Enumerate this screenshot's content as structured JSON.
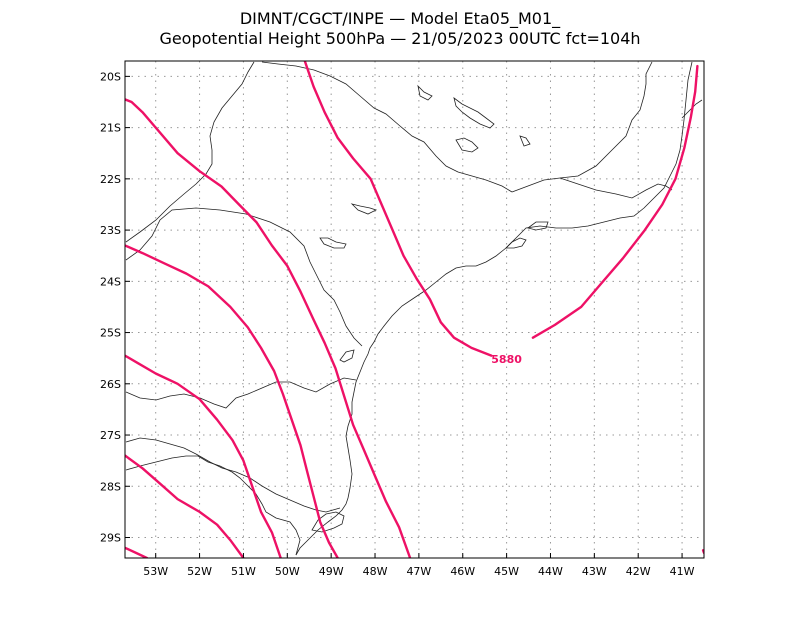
{
  "title": {
    "line1": "DIMNT/CGCT/INPE  —   Model Eta05_M01_",
    "line2": "Geopotential Height 500hPa  —   21/05/2023 00UTC fct=104h"
  },
  "axes": {
    "lat_labels": [
      "20S",
      "21S",
      "22S",
      "23S",
      "24S",
      "25S",
      "26S",
      "27S",
      "28S",
      "29S"
    ],
    "lon_labels": [
      "53W",
      "52W",
      "51W",
      "50W",
      "49W",
      "48W",
      "47W",
      "46W",
      "45W",
      "44W",
      "43W",
      "42W",
      "41W"
    ]
  },
  "contour_label": "5880",
  "colors": {
    "contour": "#ee1166",
    "coast": "#222222",
    "grid": "#999999"
  },
  "chart_data": {
    "type": "contour-map",
    "variable": "Geopotential Height 500hPa",
    "region_lon": [
      -53.7,
      -40.5
    ],
    "region_lat": [
      -29.4,
      -19.7
    ],
    "labeled_contour": 5880,
    "contours": [
      {
        "name": "contour-a",
        "points": [
          [
            -53.7,
            -20.45
          ],
          [
            -53.55,
            -20.5
          ],
          [
            -53.3,
            -20.7
          ],
          [
            -53.0,
            -21.0
          ],
          [
            -52.5,
            -21.5
          ],
          [
            -52.0,
            -21.85
          ],
          [
            -51.5,
            -22.15
          ],
          [
            -51.1,
            -22.5
          ],
          [
            -50.7,
            -22.85
          ],
          [
            -50.35,
            -23.3
          ],
          [
            -50.0,
            -23.7
          ],
          [
            -49.7,
            -24.2
          ],
          [
            -49.4,
            -24.75
          ],
          [
            -49.15,
            -25.2
          ],
          [
            -48.9,
            -25.7
          ],
          [
            -48.7,
            -26.25
          ],
          [
            -48.5,
            -26.8
          ],
          [
            -48.25,
            -27.3
          ],
          [
            -48.0,
            -27.8
          ],
          [
            -47.75,
            -28.3
          ],
          [
            -47.45,
            -28.8
          ],
          [
            -47.2,
            -29.4
          ]
        ]
      },
      {
        "name": "contour-b",
        "points": [
          [
            -53.7,
            -23.3
          ],
          [
            -53.3,
            -23.45
          ],
          [
            -52.8,
            -23.65
          ],
          [
            -52.3,
            -23.85
          ],
          [
            -51.8,
            -24.1
          ],
          [
            -51.3,
            -24.5
          ],
          [
            -50.9,
            -24.9
          ],
          [
            -50.6,
            -25.3
          ],
          [
            -50.3,
            -25.75
          ],
          [
            -50.1,
            -26.2
          ],
          [
            -49.9,
            -26.7
          ],
          [
            -49.7,
            -27.2
          ],
          [
            -49.55,
            -27.7
          ],
          [
            -49.4,
            -28.2
          ],
          [
            -49.25,
            -28.7
          ],
          [
            -49.05,
            -29.1
          ],
          [
            -48.85,
            -29.4
          ]
        ]
      },
      {
        "name": "contour-c",
        "points": [
          [
            -53.7,
            -25.45
          ],
          [
            -53.4,
            -25.6
          ],
          [
            -53.0,
            -25.8
          ],
          [
            -52.5,
            -26.0
          ],
          [
            -52.0,
            -26.3
          ],
          [
            -51.6,
            -26.7
          ],
          [
            -51.25,
            -27.1
          ],
          [
            -51.0,
            -27.5
          ],
          [
            -50.8,
            -28.0
          ],
          [
            -50.6,
            -28.5
          ],
          [
            -50.35,
            -28.9
          ],
          [
            -50.15,
            -29.4
          ]
        ]
      },
      {
        "name": "contour-d",
        "points": [
          [
            -53.7,
            -27.4
          ],
          [
            -53.3,
            -27.65
          ],
          [
            -52.9,
            -27.95
          ],
          [
            -52.5,
            -28.25
          ],
          [
            -52.0,
            -28.5
          ],
          [
            -51.6,
            -28.75
          ],
          [
            -51.3,
            -29.05
          ],
          [
            -51.0,
            -29.4
          ]
        ]
      },
      {
        "name": "contour-e",
        "points": [
          [
            -53.7,
            -29.2
          ],
          [
            -53.45,
            -29.3
          ],
          [
            -53.2,
            -29.4
          ]
        ]
      },
      {
        "name": "contour-5880",
        "points": [
          [
            -49.6,
            -19.7
          ],
          [
            -49.4,
            -20.2
          ],
          [
            -49.15,
            -20.7
          ],
          [
            -48.85,
            -21.2
          ],
          [
            -48.5,
            -21.6
          ],
          [
            -48.1,
            -22.0
          ],
          [
            -47.85,
            -22.5
          ],
          [
            -47.6,
            -23.0
          ],
          [
            -47.35,
            -23.5
          ],
          [
            -47.05,
            -23.95
          ],
          [
            -46.75,
            -24.35
          ],
          [
            -46.5,
            -24.8
          ],
          [
            -46.2,
            -25.1
          ],
          [
            -45.8,
            -25.3
          ],
          [
            -45.35,
            -25.45
          ],
          [
            -45.0,
            -25.52
          ],
          [
            -44.7,
            -25.45
          ],
          [
            -44.4,
            -25.1
          ],
          [
            -43.9,
            -24.85
          ],
          [
            -43.3,
            -24.5
          ],
          [
            -42.85,
            -24.05
          ],
          [
            -42.35,
            -23.55
          ],
          [
            -41.85,
            -23.0
          ],
          [
            -41.45,
            -22.5
          ],
          [
            -41.15,
            -22.0
          ],
          [
            -40.95,
            -21.4
          ],
          [
            -40.8,
            -20.8
          ],
          [
            -40.7,
            -20.3
          ],
          [
            -40.65,
            -19.8
          ]
        ]
      },
      {
        "name": "contour-corner",
        "points": [
          [
            -40.52,
            -29.25
          ],
          [
            -40.5,
            -29.3
          ]
        ]
      }
    ]
  }
}
